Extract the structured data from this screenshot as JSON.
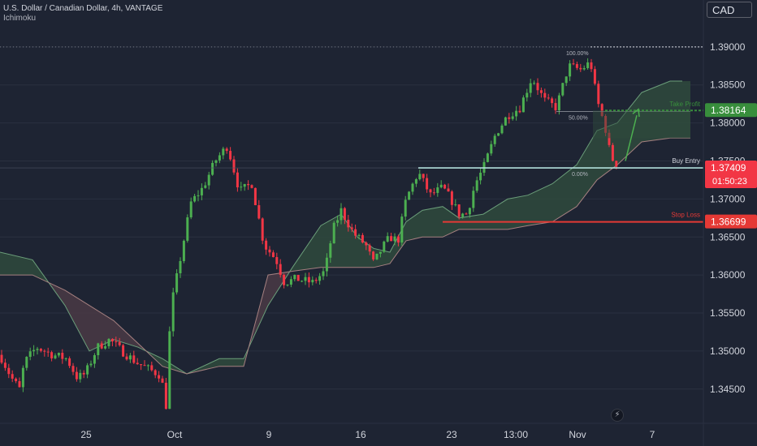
{
  "header": {
    "title": "U.S. Dollar / Canadian Dollar, 4h, VANTAGE",
    "indicator": "Ichimoku",
    "currency_button": "CAD"
  },
  "colors": {
    "background": "#1e2433",
    "bull": "#4caf50",
    "bear": "#f23645",
    "cloud_bull": "#2f4a3d",
    "cloud_bear": "#4a3a45",
    "entry": "#b2dfdb",
    "take_profit": "#388e3c",
    "stop_loss": "#e53935"
  },
  "icons": {
    "replay": "lightning-icon"
  },
  "chart_data": {
    "type": "candlestick",
    "symbol": "USDCAD",
    "timeframe": "4h",
    "ylim": [
      1.3405,
      1.3935
    ],
    "yticks": [
      "1.39000",
      "1.38500",
      "1.38000",
      "1.37500",
      "1.37000",
      "1.36500",
      "1.36000",
      "1.35500",
      "1.35000",
      "1.34500"
    ],
    "xticks": [
      "25",
      "Oct",
      "9",
      "16",
      "23",
      "13:00",
      "Nov",
      "7"
    ],
    "anchors": [
      [
        0,
        1.3495
      ],
      [
        14,
        1.3465
      ],
      [
        24,
        1.345
      ],
      [
        30,
        1.3485
      ],
      [
        45,
        1.3505
      ],
      [
        65,
        1.3495
      ],
      [
        82,
        1.349
      ],
      [
        95,
        1.3465
      ],
      [
        105,
        1.347
      ],
      [
        120,
        1.3505
      ],
      [
        135,
        1.3515
      ],
      [
        150,
        1.35
      ],
      [
        168,
        1.3485
      ],
      [
        185,
        1.3475
      ],
      [
        198,
        1.3468
      ],
      [
        205,
        1.3425
      ],
      [
        210,
        1.3555
      ],
      [
        220,
        1.361
      ],
      [
        235,
        1.3695
      ],
      [
        250,
        1.3715
      ],
      [
        265,
        1.375
      ],
      [
        280,
        1.377
      ],
      [
        295,
        1.371
      ],
      [
        310,
        1.372
      ],
      [
        325,
        1.364
      ],
      [
        340,
        1.362
      ],
      [
        350,
        1.359
      ],
      [
        365,
        1.3595
      ],
      [
        385,
        1.359
      ],
      [
        400,
        1.3605
      ],
      [
        410,
        1.366
      ],
      [
        420,
        1.3685
      ],
      [
        435,
        1.3655
      ],
      [
        450,
        1.364
      ],
      [
        460,
        1.3615
      ],
      [
        470,
        1.3635
      ],
      [
        480,
        1.365
      ],
      [
        490,
        1.3645
      ],
      [
        500,
        1.37
      ],
      [
        515,
        1.3735
      ],
      [
        530,
        1.3705
      ],
      [
        545,
        1.3715
      ],
      [
        555,
        1.37
      ],
      [
        565,
        1.368
      ],
      [
        575,
        1.368
      ],
      [
        585,
        1.372
      ],
      [
        595,
        1.374
      ],
      [
        610,
        1.3785
      ],
      [
        625,
        1.381
      ],
      [
        640,
        1.382
      ],
      [
        655,
        1.386
      ],
      [
        670,
        1.383
      ],
      [
        685,
        1.382
      ],
      [
        700,
        1.3875
      ],
      [
        715,
        1.387
      ],
      [
        727,
        1.388
      ],
      [
        735,
        1.383
      ],
      [
        745,
        1.3795
      ],
      [
        752,
        1.3755
      ],
      [
        760,
        1.3745
      ]
    ],
    "ichimoku": {
      "span_a": [
        [
          0,
          1.363
        ],
        [
          40,
          1.362
        ],
        [
          80,
          1.356
        ],
        [
          110,
          1.35
        ],
        [
          140,
          1.3515
        ],
        [
          170,
          1.3505
        ],
        [
          200,
          1.349
        ],
        [
          230,
          1.347
        ],
        [
          270,
          1.349
        ],
        [
          300,
          1.349
        ],
        [
          330,
          1.356
        ],
        [
          360,
          1.361
        ],
        [
          395,
          1.3665
        ],
        [
          420,
          1.368
        ],
        [
          440,
          1.365
        ],
        [
          460,
          1.3635
        ],
        [
          480,
          1.363
        ],
        [
          500,
          1.367
        ],
        [
          520,
          1.3685
        ],
        [
          545,
          1.369
        ],
        [
          565,
          1.3675
        ],
        [
          595,
          1.368
        ],
        [
          625,
          1.37
        ],
        [
          650,
          1.3705
        ],
        [
          680,
          1.372
        ],
        [
          710,
          1.3745
        ],
        [
          735,
          1.379
        ],
        [
          760,
          1.38
        ],
        [
          790,
          1.384
        ],
        [
          825,
          1.3855
        ],
        [
          840,
          1.3855
        ]
      ],
      "span_b": [
        [
          0,
          1.36
        ],
        [
          40,
          1.36
        ],
        [
          80,
          1.358
        ],
        [
          110,
          1.356
        ],
        [
          140,
          1.354
        ],
        [
          170,
          1.351
        ],
        [
          200,
          1.348
        ],
        [
          230,
          1.347
        ],
        [
          270,
          1.348
        ],
        [
          300,
          1.348
        ],
        [
          330,
          1.36
        ],
        [
          360,
          1.3605
        ],
        [
          395,
          1.361
        ],
        [
          420,
          1.361
        ],
        [
          440,
          1.361
        ],
        [
          460,
          1.361
        ],
        [
          480,
          1.3615
        ],
        [
          500,
          1.3645
        ],
        [
          520,
          1.365
        ],
        [
          545,
          1.365
        ],
        [
          565,
          1.366
        ],
        [
          595,
          1.366
        ],
        [
          625,
          1.366
        ],
        [
          650,
          1.3665
        ],
        [
          680,
          1.367
        ],
        [
          710,
          1.369
        ],
        [
          735,
          1.3725
        ],
        [
          760,
          1.3745
        ],
        [
          790,
          1.3775
        ],
        [
          825,
          1.378
        ],
        [
          850,
          1.378
        ]
      ]
    },
    "levels": {
      "take_profit": {
        "label": "Take Profit",
        "value": "1.38164"
      },
      "buy_entry": {
        "label": "Buy Entry",
        "value": "1.37409",
        "countdown": "01:50:23"
      },
      "stop_loss": {
        "label": "Stop Loss",
        "value": "1.36699"
      },
      "high": "1.39000"
    },
    "fibonacci": [
      "100.00%",
      "50.00%",
      "0.00%"
    ]
  }
}
